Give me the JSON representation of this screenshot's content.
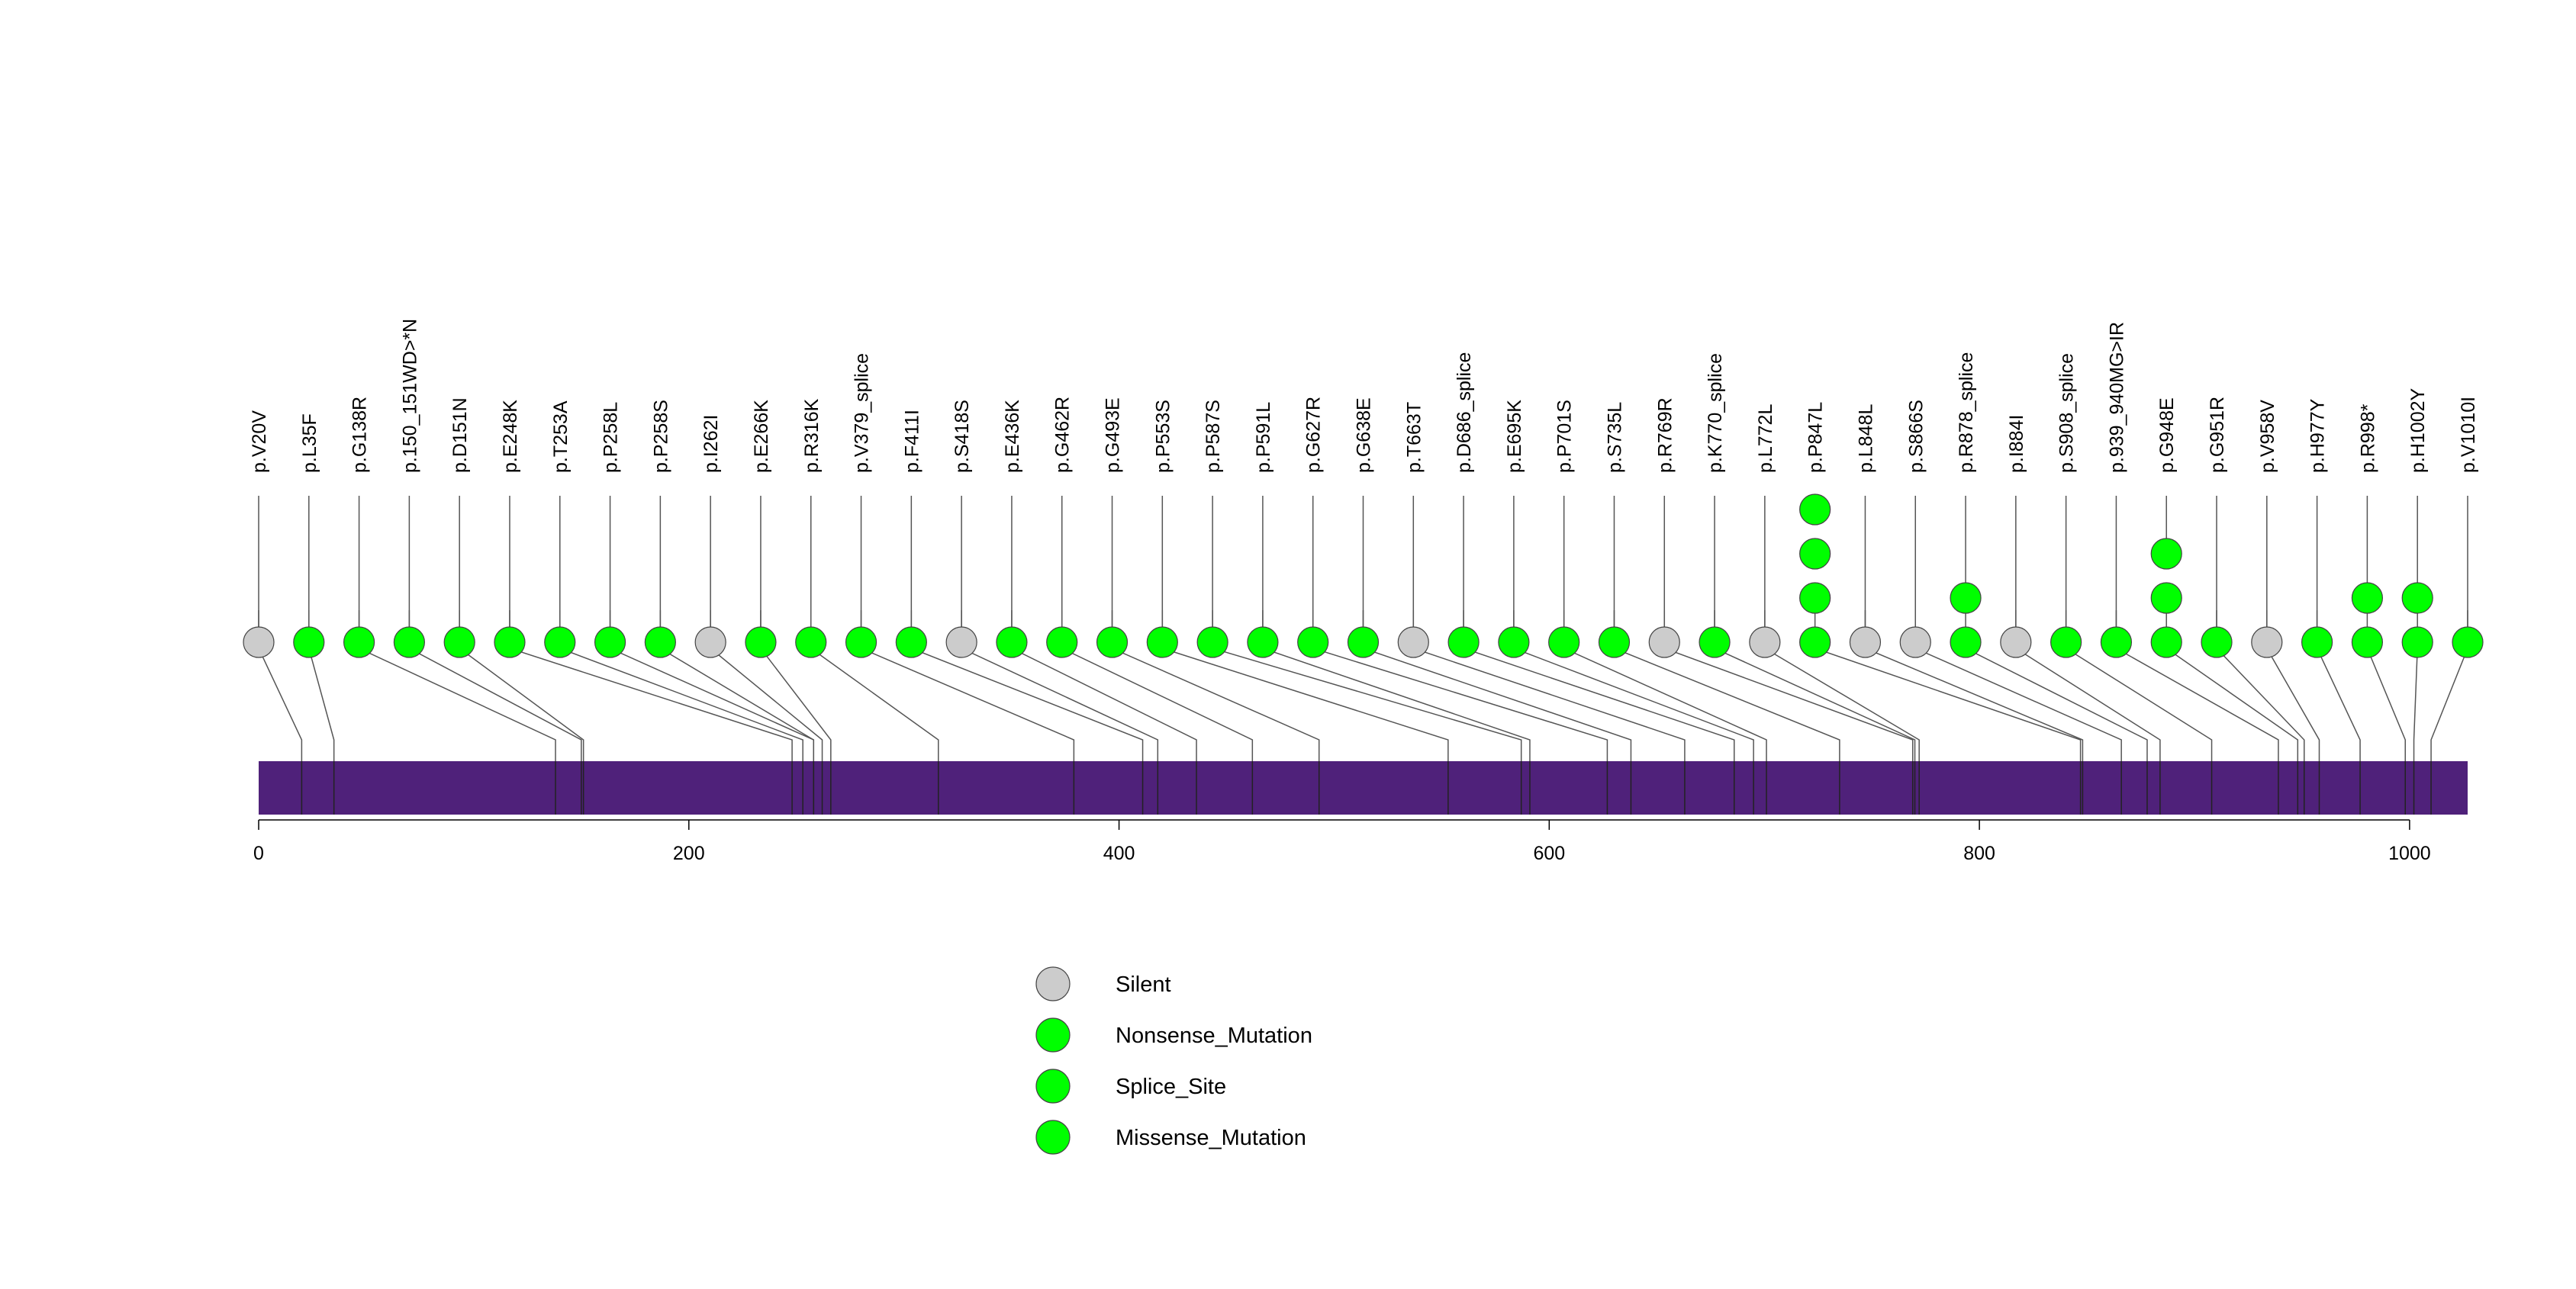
{
  "chart_data": {
    "type": "lollipop",
    "title": "",
    "xlabel": "",
    "ylabel": "",
    "protein_length": 1027,
    "xlim": [
      0,
      1027
    ],
    "x_ticks": [
      0,
      200,
      400,
      600,
      800,
      1000
    ],
    "x_tick_labels": [
      "0",
      "200",
      "400",
      "600",
      "800",
      "1000"
    ],
    "colors": {
      "Silent": "#cccccc",
      "Nonsense_Mutation": "#00ff00",
      "Splice_Site": "#00ff00",
      "Missense_Mutation": "#00ff00",
      "protein_bar": "#4f217a",
      "domain_lines": "#222222",
      "connector": "#555555"
    },
    "legend": [
      "Silent",
      "Nonsense_Mutation",
      "Splice_Site",
      "Missense_Mutation"
    ],
    "mutations": [
      {
        "label": "p.V20V",
        "position": 20,
        "count": 1,
        "type": "Silent"
      },
      {
        "label": "p.L35F",
        "position": 35,
        "count": 1,
        "type": "Missense_Mutation"
      },
      {
        "label": "p.G138R",
        "position": 138,
        "count": 1,
        "type": "Missense_Mutation"
      },
      {
        "label": "p.150_151WD>*N",
        "position": 150,
        "count": 1,
        "type": "Nonsense_Mutation"
      },
      {
        "label": "p.D151N",
        "position": 151,
        "count": 1,
        "type": "Missense_Mutation"
      },
      {
        "label": "p.E248K",
        "position": 248,
        "count": 1,
        "type": "Missense_Mutation"
      },
      {
        "label": "p.T253A",
        "position": 253,
        "count": 1,
        "type": "Missense_Mutation"
      },
      {
        "label": "p.P258L",
        "position": 258,
        "count": 1,
        "type": "Missense_Mutation"
      },
      {
        "label": "p.P258S",
        "position": 258,
        "count": 1,
        "type": "Missense_Mutation"
      },
      {
        "label": "p.I262I",
        "position": 262,
        "count": 1,
        "type": "Silent"
      },
      {
        "label": "p.E266K",
        "position": 266,
        "count": 1,
        "type": "Missense_Mutation"
      },
      {
        "label": "p.R316K",
        "position": 316,
        "count": 1,
        "type": "Missense_Mutation"
      },
      {
        "label": "p.V379_splice",
        "position": 379,
        "count": 1,
        "type": "Splice_Site"
      },
      {
        "label": "p.F411I",
        "position": 411,
        "count": 1,
        "type": "Missense_Mutation"
      },
      {
        "label": "p.S418S",
        "position": 418,
        "count": 1,
        "type": "Silent"
      },
      {
        "label": "p.E436K",
        "position": 436,
        "count": 1,
        "type": "Missense_Mutation"
      },
      {
        "label": "p.G462R",
        "position": 462,
        "count": 1,
        "type": "Missense_Mutation"
      },
      {
        "label": "p.G493E",
        "position": 493,
        "count": 1,
        "type": "Missense_Mutation"
      },
      {
        "label": "p.P553S",
        "position": 553,
        "count": 1,
        "type": "Missense_Mutation"
      },
      {
        "label": "p.P587S",
        "position": 587,
        "count": 1,
        "type": "Missense_Mutation"
      },
      {
        "label": "p.P591L",
        "position": 591,
        "count": 1,
        "type": "Missense_Mutation"
      },
      {
        "label": "p.G627R",
        "position": 627,
        "count": 1,
        "type": "Missense_Mutation"
      },
      {
        "label": "p.G638E",
        "position": 638,
        "count": 1,
        "type": "Missense_Mutation"
      },
      {
        "label": "p.T663T",
        "position": 663,
        "count": 1,
        "type": "Silent"
      },
      {
        "label": "p.D686_splice",
        "position": 686,
        "count": 1,
        "type": "Splice_Site"
      },
      {
        "label": "p.E695K",
        "position": 695,
        "count": 1,
        "type": "Missense_Mutation"
      },
      {
        "label": "p.P701S",
        "position": 701,
        "count": 1,
        "type": "Missense_Mutation"
      },
      {
        "label": "p.S735L",
        "position": 735,
        "count": 1,
        "type": "Missense_Mutation"
      },
      {
        "label": "p.R769R",
        "position": 769,
        "count": 1,
        "type": "Silent"
      },
      {
        "label": "p.K770_splice",
        "position": 770,
        "count": 1,
        "type": "Splice_Site"
      },
      {
        "label": "p.L772L",
        "position": 772,
        "count": 1,
        "type": "Silent"
      },
      {
        "label": "p.P847L",
        "position": 847,
        "count": 4,
        "type": "Missense_Mutation"
      },
      {
        "label": "p.L848L",
        "position": 848,
        "count": 1,
        "type": "Silent"
      },
      {
        "label": "p.S866S",
        "position": 866,
        "count": 1,
        "type": "Silent"
      },
      {
        "label": "p.R878_splice",
        "position": 878,
        "count": 2,
        "type": "Splice_Site"
      },
      {
        "label": "p.I884I",
        "position": 884,
        "count": 1,
        "type": "Silent"
      },
      {
        "label": "p.S908_splice",
        "position": 908,
        "count": 1,
        "type": "Splice_Site"
      },
      {
        "label": "p.939_940MG>IR",
        "position": 939,
        "count": 1,
        "type": "Missense_Mutation"
      },
      {
        "label": "p.G948E",
        "position": 948,
        "count": 3,
        "type": "Missense_Mutation"
      },
      {
        "label": "p.G951R",
        "position": 951,
        "count": 1,
        "type": "Missense_Mutation"
      },
      {
        "label": "p.V958V",
        "position": 958,
        "count": 1,
        "type": "Silent"
      },
      {
        "label": "p.H977Y",
        "position": 977,
        "count": 1,
        "type": "Missense_Mutation"
      },
      {
        "label": "p.R998*",
        "position": 998,
        "count": 2,
        "type": "Nonsense_Mutation"
      },
      {
        "label": "p.H1002Y",
        "position": 1002,
        "count": 2,
        "type": "Missense_Mutation"
      },
      {
        "label": "p.V1010I",
        "position": 1010,
        "count": 1,
        "type": "Missense_Mutation"
      }
    ]
  }
}
